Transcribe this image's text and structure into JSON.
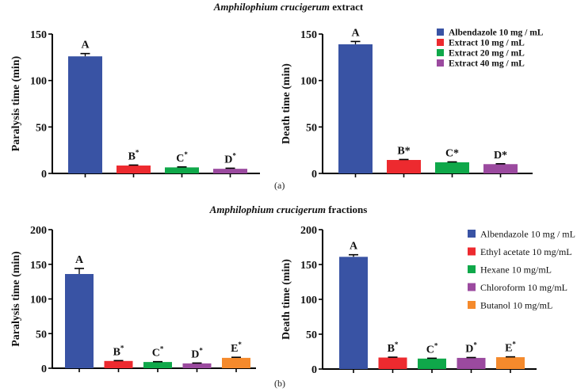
{
  "titles": {
    "a": {
      "italic": "Amphilophium crucigerum",
      "rest": " extract"
    },
    "b": {
      "italic": "Amphilophium crucigerum",
      "rest": " fractions"
    }
  },
  "panel_labels": {
    "a": "(a)",
    "b": "(b)"
  },
  "chart_data": [
    {
      "type": "bar",
      "panel": "a-left",
      "ylabel": "Paralysis time (min)",
      "ylim": [
        0,
        150
      ],
      "yticks": [
        "0",
        "50",
        "100",
        "150"
      ],
      "ytick_values": [
        0,
        50,
        100,
        150
      ],
      "categories": [
        "Albendazole 10 mg / mL",
        "Extract 10 mg / mL",
        "Extract 20 mg / mL",
        "Extract 40 mg / mL"
      ],
      "values": [
        126,
        8.5,
        6.5,
        5
      ],
      "errors": [
        3,
        0.5,
        0.5,
        0.6
      ],
      "labels": [
        "A",
        "B",
        "C",
        "D"
      ],
      "label_marks": [
        "",
        "*",
        "*",
        "*"
      ],
      "colors": [
        "#3953a4",
        "#ed2a2f",
        "#0fa84a",
        "#9b4a9f"
      ]
    },
    {
      "type": "bar",
      "panel": "a-right",
      "ylabel": "Death time (min)",
      "ylim": [
        0,
        150
      ],
      "yticks": [
        "0",
        "50",
        "100",
        "150"
      ],
      "ytick_values": [
        0,
        50,
        100,
        150
      ],
      "categories": [
        "Albendazole 10 mg / mL",
        "Extract 10 mg / mL",
        "Extract 20 mg / mL",
        "Extract 40 mg / mL"
      ],
      "values": [
        139,
        14.5,
        12,
        10
      ],
      "errors": [
        3,
        0.5,
        0.4,
        0.4
      ],
      "labels": [
        "A",
        "B*",
        "C*",
        "D*"
      ],
      "label_marks": [
        "",
        "",
        "",
        ""
      ],
      "colors": [
        "#3953a4",
        "#ed2a2f",
        "#0fa84a",
        "#9b4a9f"
      ],
      "legend": [
        "Albendazole 10 mg / mL",
        "Extract 10 mg / mL",
        "Extract 20 mg / mL",
        "Extract 40 mg / mL"
      ],
      "legend_bold": true,
      "legend_position": "top-right"
    },
    {
      "type": "bar",
      "panel": "b-left",
      "ylabel": "Paralysis time (min)",
      "ylim": [
        0,
        200
      ],
      "yticks": [
        "0",
        "50",
        "100",
        "150",
        "200"
      ],
      "ytick_values": [
        0,
        50,
        100,
        150,
        200
      ],
      "categories": [
        "Albendazole 10 mg / mL",
        "Ethyl acetate 10 mg/mL",
        "Hexane 10 mg/mL",
        "Chloroform 10 mg/mL",
        "Butanol 10 mg/mL"
      ],
      "values": [
        136,
        10.5,
        9,
        7,
        15
      ],
      "errors": [
        8,
        0.5,
        0.5,
        0.5,
        0.8
      ],
      "labels": [
        "A",
        "B",
        "C",
        "D",
        "E"
      ],
      "label_marks": [
        "",
        "*",
        "*",
        "*",
        "*"
      ],
      "colors": [
        "#3953a4",
        "#ed2a2f",
        "#0fa84a",
        "#9b4a9f",
        "#f58a2c"
      ]
    },
    {
      "type": "bar",
      "panel": "b-right",
      "ylabel": "Death time (min)",
      "ylim": [
        0,
        200
      ],
      "yticks": [
        "0",
        "50",
        "100",
        "150",
        "200"
      ],
      "ytick_values": [
        0,
        50,
        100,
        150,
        200
      ],
      "categories": [
        "Albendazole 10 mg / mL",
        "Ethyl acetate 10 mg/mL",
        "Hexane 10 mg/mL",
        "Chloroform 10 mg/mL",
        "Butanol 10 mg/mL"
      ],
      "values": [
        161,
        16.5,
        15,
        16,
        17
      ],
      "errors": [
        3,
        0.5,
        0.5,
        0.5,
        0.5
      ],
      "labels": [
        "A",
        "B",
        "C",
        "D",
        "E"
      ],
      "label_marks": [
        "",
        "*",
        "*",
        "*",
        "*"
      ],
      "colors": [
        "#3953a4",
        "#ed2a2f",
        "#0fa84a",
        "#9b4a9f",
        "#f58a2c"
      ],
      "legend": [
        "Albendazole 10 mg / mL",
        "Ethyl acetate 10 mg/mL",
        "Hexane 10 mg/mL",
        "Chloroform 10 mg/mL",
        "Butanol 10 mg/mL"
      ],
      "legend_bold": false,
      "legend_position": "top-right"
    }
  ]
}
